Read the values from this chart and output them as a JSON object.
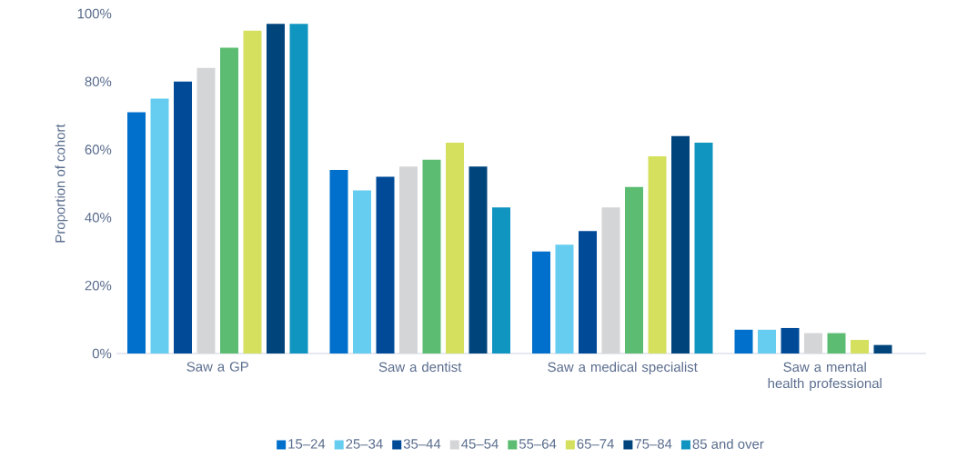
{
  "chart_data": {
    "type": "bar",
    "ylabel": "Proportion of cohort",
    "categories": [
      "Saw a GP",
      "Saw a dentist",
      "Saw a medical specialist",
      "Saw a mental health professional"
    ],
    "series": [
      {
        "name": "15–24",
        "color": "#0070cc",
        "values": [
          71,
          54,
          30,
          7
        ]
      },
      {
        "name": "25–34",
        "color": "#66cdf0",
        "values": [
          75,
          48,
          32,
          7
        ]
      },
      {
        "name": "35–44",
        "color": "#004a98",
        "values": [
          80,
          52,
          36,
          7.5
        ]
      },
      {
        "name": "45–54",
        "color": "#d4d5d7",
        "values": [
          84,
          55,
          43,
          6
        ]
      },
      {
        "name": "55–64",
        "color": "#5cbd72",
        "values": [
          90,
          57,
          49,
          6
        ]
      },
      {
        "name": "65–74",
        "color": "#d4e05e",
        "values": [
          95,
          62,
          58,
          4
        ]
      },
      {
        "name": "75–84",
        "color": "#00447c",
        "values": [
          97,
          55,
          64,
          2.5
        ]
      },
      {
        "name": "85 and over",
        "color": "#1094c0",
        "values": [
          97,
          43,
          62,
          null
        ]
      }
    ],
    "ylim": [
      0,
      100
    ],
    "yticks": [
      {
        "value": 0,
        "label": "0%"
      },
      {
        "value": 20,
        "label": "20%"
      },
      {
        "value": 40,
        "label": "40%"
      },
      {
        "value": 60,
        "label": "60%"
      },
      {
        "value": 80,
        "label": "80%"
      },
      {
        "value": 100,
        "label": "100%"
      }
    ],
    "grid": false,
    "legend": "bottom"
  }
}
